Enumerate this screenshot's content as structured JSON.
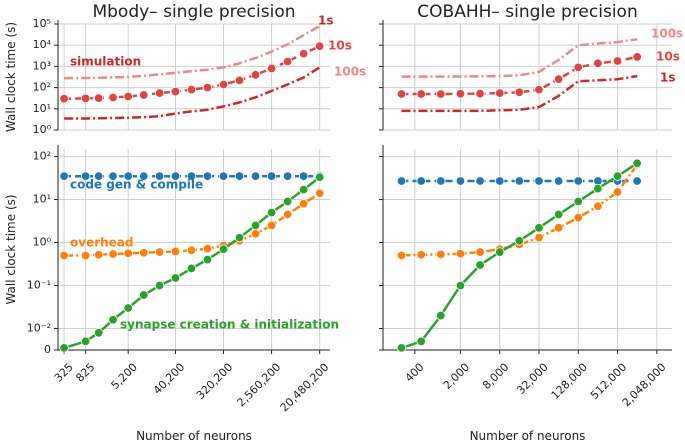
{
  "chart_data": [
    {
      "type": "line",
      "title": "Mbody– single precision",
      "ylabel": "Wall clock time (s)",
      "annotations": [
        "simulation"
      ],
      "x": [
        325,
        825,
        1450,
        2700,
        5200,
        10200,
        20200,
        40200,
        80200,
        160200,
        320200,
        640200,
        1280200,
        2560200,
        5120200,
        10240200,
        20480200
      ],
      "series": [
        {
          "name": "1s",
          "color": "#c62a2a",
          "linestyle": "dashdot",
          "marker": false,
          "values": [
            3.5,
            3.5,
            3.6,
            3.7,
            3.8,
            4,
            4.5,
            6,
            7.5,
            9,
            13,
            20,
            35,
            70,
            140,
            300,
            900
          ]
        },
        {
          "name": "10s",
          "color": "#dc4545",
          "linestyle": "dashed",
          "marker": true,
          "values": [
            30,
            31,
            32,
            34,
            38,
            45,
            55,
            65,
            80,
            100,
            140,
            220,
            400,
            800,
            1700,
            4000,
            9000
          ]
        },
        {
          "name": "100s",
          "color": "#e98989",
          "linestyle": "dashdot",
          "marker": false,
          "values": [
            280,
            285,
            290,
            300,
            320,
            360,
            420,
            500,
            600,
            700,
            900,
            1400,
            2500,
            5000,
            11000,
            30000,
            80000
          ]
        }
      ],
      "xscale": "log",
      "yscale": "log",
      "xlim": [
        250,
        32000000
      ],
      "ylim": [
        1,
        100000
      ],
      "xticks": [
        325,
        825,
        5200,
        40200,
        320200,
        2560200,
        20480200
      ],
      "show_xticklabels": false,
      "yticks": [
        {
          "value": 1,
          "label": "10⁰"
        },
        {
          "value": 10,
          "label": "10¹"
        },
        {
          "value": 100,
          "label": "10²"
        },
        {
          "value": 1000,
          "label": "10³"
        },
        {
          "value": 10000,
          "label": "10⁴"
        },
        {
          "value": 100000,
          "label": "10⁵"
        }
      ],
      "show_yticklabels": true,
      "grid": true
    },
    {
      "type": "line",
      "ylabel": "Wall clock time (s)",
      "xlabel": "Number of neurons",
      "x": [
        325,
        825,
        1450,
        2700,
        5200,
        10200,
        20200,
        40200,
        80200,
        160200,
        320200,
        640200,
        1280200,
        2560200,
        5120200,
        10240200,
        20480200
      ],
      "series": [
        {
          "name": "code gen & compile",
          "color": "#1f77b4",
          "linestyle": "dashed",
          "marker": true,
          "values": [
            35,
            35,
            35,
            35,
            35,
            35,
            35,
            35,
            35,
            35,
            35,
            35,
            35,
            35,
            35,
            35,
            35
          ]
        },
        {
          "name": "overhead",
          "color": "#ff7f0e",
          "linestyle": "dashdot",
          "marker": true,
          "values": [
            0.5,
            0.5,
            0.52,
            0.54,
            0.56,
            0.58,
            0.6,
            0.62,
            0.66,
            0.72,
            0.85,
            1.1,
            1.6,
            2.5,
            4.5,
            8,
            14
          ]
        },
        {
          "name": "synapse creation & initialization",
          "color": "#2ca02c",
          "linestyle": "solid",
          "marker": true,
          "values": [
            0.001,
            0.004,
            0.008,
            0.016,
            0.03,
            0.06,
            0.1,
            0.15,
            0.25,
            0.4,
            0.7,
            1.3,
            2.5,
            5,
            9,
            17,
            33
          ]
        }
      ],
      "xscale": "log",
      "yscale": "symlog",
      "linthresh": 0.01,
      "linscale": 0.5,
      "xlim": [
        250,
        32000000
      ],
      "ylim": [
        0,
        150
      ],
      "xticks": [
        325,
        825,
        {
          "value": 5200,
          "label": "5,200"
        },
        {
          "value": 40200,
          "label": "40,200"
        },
        {
          "value": 320200,
          "label": "320,200"
        },
        {
          "value": 2560200,
          "label": "2,560,200"
        },
        {
          "value": 20480200,
          "label": "20,480,200"
        }
      ],
      "show_xticklabels": true,
      "yticks": [
        0,
        {
          "value": 0.01,
          "label": "10⁻²"
        },
        {
          "value": 0.1,
          "label": "10⁻¹"
        },
        {
          "value": 1,
          "label": "10⁰"
        },
        {
          "value": 10,
          "label": "10¹"
        },
        {
          "value": 100,
          "label": "10²"
        }
      ],
      "show_yticklabels": true,
      "grid": true
    },
    {
      "type": "line",
      "title": "COBAHH– single precision",
      "x": [
        250,
        500,
        1000,
        2000,
        4000,
        8000,
        16000,
        32000,
        64000,
        128000,
        256000,
        512000,
        1024000
      ],
      "series": [
        {
          "name": "1s",
          "color": "#c62a2a",
          "linestyle": "dashdot",
          "marker": false,
          "values": [
            8,
            8,
            8,
            8,
            8,
            8.5,
            9,
            12,
            40,
            200,
            220,
            250,
            350
          ]
        },
        {
          "name": "10s",
          "color": "#dc4545",
          "linestyle": "dashed",
          "marker": true,
          "values": [
            50,
            50,
            50,
            51,
            52,
            55,
            60,
            80,
            250,
            900,
            1400,
            1800,
            2800
          ]
        },
        {
          "name": "100s",
          "color": "#e98989",
          "linestyle": "dashdot",
          "marker": false,
          "values": [
            330,
            330,
            330,
            335,
            340,
            350,
            380,
            550,
            2000,
            10000,
            12000,
            14000,
            19000
          ]
        }
      ],
      "xscale": "log",
      "yscale": "log",
      "xlim": [
        130,
        3500000
      ],
      "ylim": [
        1,
        100000
      ],
      "xticks": [
        400,
        2000,
        8000,
        32000,
        128000,
        512000,
        2048000
      ],
      "show_xticklabels": false,
      "yticks": [
        1,
        10,
        100,
        1000,
        10000,
        100000
      ],
      "show_yticklabels": false,
      "grid": true
    },
    {
      "type": "line",
      "xlabel": "Number of neurons",
      "x": [
        250,
        500,
        1000,
        2000,
        4000,
        8000,
        16000,
        32000,
        64000,
        128000,
        256000,
        512000,
        1024000
      ],
      "series": [
        {
          "color": "#1f77b4",
          "linestyle": "dashed",
          "marker": true,
          "values": [
            27,
            27,
            27,
            27,
            27,
            27,
            27,
            27,
            27,
            27,
            27,
            27,
            27
          ]
        },
        {
          "color": "#ff7f0e",
          "linestyle": "dashdot",
          "marker": true,
          "values": [
            0.5,
            0.52,
            0.53,
            0.55,
            0.6,
            0.7,
            0.9,
            1.3,
            2.2,
            3.8,
            7,
            15,
            65
          ]
        },
        {
          "color": "#2ca02c",
          "linestyle": "solid",
          "marker": true,
          "values": [
            0.001,
            0.004,
            0.02,
            0.1,
            0.3,
            0.6,
            1.1,
            2.2,
            4.5,
            9,
            18,
            35,
            70
          ]
        }
      ],
      "xscale": "log",
      "yscale": "symlog",
      "linthresh": 0.01,
      "linscale": 0.5,
      "xlim": [
        130,
        3500000
      ],
      "ylim": [
        0,
        150
      ],
      "xticks": [
        400,
        {
          "value": 2000,
          "label": "2,000"
        },
        {
          "value": 8000,
          "label": "8,000"
        },
        {
          "value": 32000,
          "label": "32,000"
        },
        {
          "value": 128000,
          "label": "128,000"
        },
        {
          "value": 512000,
          "label": "512,000"
        },
        {
          "value": 2048000,
          "label": "2,048,000"
        }
      ],
      "show_xticklabels": true,
      "yticks": [
        0,
        0.01,
        0.1,
        1,
        10,
        100
      ],
      "show_yticklabels": false,
      "grid": true
    }
  ]
}
